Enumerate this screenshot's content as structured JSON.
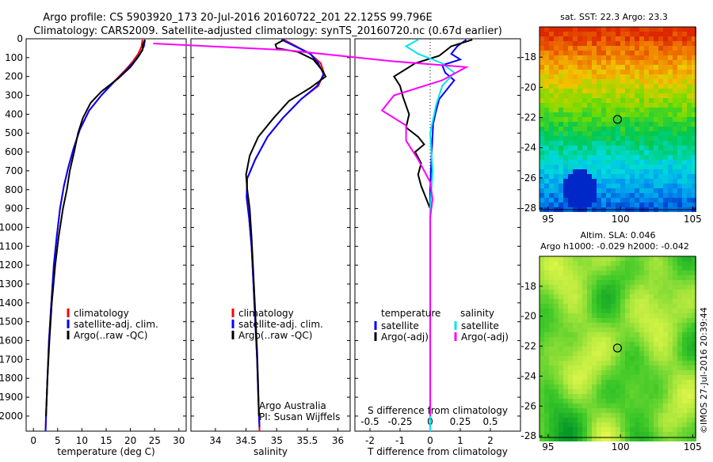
{
  "header": {
    "line1": "Argo profile: CS 5903920_173 20-Jul-2016 20160722_201 22.125S 99.796E",
    "line2": "Climatology: CARS2009. Satellite-adjusted climatology: synTS_20160720.nc (0.67d earlier)"
  },
  "colors": {
    "climatology": "#ff0000",
    "satellite": "#0000ff",
    "argo": "#000000",
    "salinity_satellite": "#00e5ee",
    "salinity_argo": "#ff00ff"
  },
  "depth_ticks": [
    "0",
    "100",
    "200",
    "300",
    "400",
    "500",
    "600",
    "700",
    "800",
    "900",
    "1000",
    "1100",
    "1200",
    "1300",
    "1400",
    "1500",
    "1600",
    "1700",
    "1800",
    "1900",
    "2000"
  ],
  "chart_data": [
    {
      "id": "temperature",
      "type": "line",
      "xlabel": "temperature (deg C)",
      "xlim": [
        -1.5,
        31.5
      ],
      "ylim": [
        0,
        2080
      ],
      "y_reversed": true,
      "xticks": [
        "0",
        "5",
        "10",
        "15",
        "20",
        "25",
        "30"
      ],
      "legend": [
        "climatology",
        "satellite-adj. clim.",
        "Argo(..raw -QC)"
      ],
      "series": [
        {
          "name": "climatology",
          "values": [
            [
              22.5,
              5
            ],
            [
              22.3,
              40
            ],
            [
              21.6,
              80
            ],
            [
              20.5,
              120
            ],
            [
              18.8,
              170
            ],
            [
              16.5,
              230
            ],
            [
              14.0,
              300
            ],
            [
              11.5,
              380
            ],
            [
              9.6,
              480
            ],
            [
              8.3,
              580
            ],
            [
              7.2,
              680
            ],
            [
              6.3,
              780
            ],
            [
              5.5,
              900
            ],
            [
              4.8,
              1050
            ],
            [
              4.2,
              1200
            ],
            [
              3.7,
              1400
            ],
            [
              3.2,
              1600
            ],
            [
              2.9,
              1800
            ],
            [
              2.6,
              2000
            ],
            [
              2.5,
              2080
            ]
          ]
        },
        {
          "name": "satellite-adj. clim.",
          "values": [
            [
              23.0,
              5
            ],
            [
              22.8,
              40
            ],
            [
              22.0,
              80
            ],
            [
              20.8,
              120
            ],
            [
              19.0,
              170
            ],
            [
              16.6,
              230
            ],
            [
              14.0,
              300
            ],
            [
              11.5,
              380
            ],
            [
              9.6,
              480
            ],
            [
              8.3,
              580
            ],
            [
              7.2,
              680
            ],
            [
              6.3,
              780
            ],
            [
              5.5,
              900
            ],
            [
              4.8,
              1050
            ],
            [
              4.2,
              1200
            ],
            [
              3.7,
              1400
            ],
            [
              3.2,
              1600
            ],
            [
              2.9,
              1800
            ],
            [
              2.6,
              2000
            ],
            [
              2.5,
              2080
            ]
          ]
        },
        {
          "name": "Argo(..raw -QC)",
          "values": [
            [
              23.0,
              5
            ],
            [
              22.6,
              30
            ],
            [
              22.5,
              60
            ],
            [
              21.5,
              100
            ],
            [
              20.0,
              150
            ],
            [
              17.5,
              210
            ],
            [
              14.0,
              280
            ],
            [
              11.8,
              340
            ],
            [
              10.2,
              420
            ],
            [
              9.2,
              500
            ],
            [
              8.4,
              600
            ],
            [
              7.5,
              700
            ],
            [
              6.9,
              800
            ],
            [
              6.1,
              900
            ],
            [
              5.2,
              1050
            ],
            [
              4.5,
              1200
            ],
            [
              3.8,
              1400
            ],
            [
              3.3,
              1600
            ],
            [
              2.9,
              1800
            ],
            [
              2.6,
              2000
            ]
          ]
        }
      ]
    },
    {
      "id": "salinity",
      "type": "line",
      "xlabel": "salinity",
      "xlim": [
        33.6,
        36.2
      ],
      "ylim": [
        0,
        2080
      ],
      "y_reversed": true,
      "xticks": [
        "34",
        "34.5",
        "35",
        "35.5",
        "36"
      ],
      "legend": [
        "climatology",
        "satellite-adj. clim.",
        "Argo(..raw -QC)"
      ],
      "annotation": [
        "Argo Australia",
        "PI: Susan Wijffels"
      ],
      "series": [
        {
          "name": "climatology",
          "values": [
            [
              35.12,
              5
            ],
            [
              35.32,
              40
            ],
            [
              35.55,
              80
            ],
            [
              35.72,
              130
            ],
            [
              35.77,
              180
            ],
            [
              35.68,
              250
            ],
            [
              35.4,
              320
            ],
            [
              35.1,
              420
            ],
            [
              34.85,
              520
            ],
            [
              34.65,
              640
            ],
            [
              34.52,
              740
            ],
            [
              34.51,
              840
            ],
            [
              34.55,
              950
            ],
            [
              34.59,
              1100
            ],
            [
              34.62,
              1300
            ],
            [
              34.65,
              1500
            ],
            [
              34.68,
              1700
            ],
            [
              34.7,
              1900
            ],
            [
              34.72,
              2080
            ]
          ]
        },
        {
          "name": "satellite-adj. clim.",
          "values": [
            [
              35.08,
              5
            ],
            [
              35.3,
              40
            ],
            [
              35.55,
              80
            ],
            [
              35.68,
              130
            ],
            [
              35.77,
              190
            ],
            [
              35.66,
              250
            ],
            [
              35.4,
              320
            ],
            [
              35.1,
              420
            ],
            [
              34.85,
              520
            ],
            [
              34.65,
              640
            ],
            [
              34.52,
              740
            ],
            [
              34.51,
              840
            ],
            [
              34.55,
              950
            ],
            [
              34.59,
              1100
            ],
            [
              34.62,
              1300
            ],
            [
              34.65,
              1500
            ],
            [
              34.68,
              1700
            ],
            [
              34.7,
              1900
            ],
            [
              34.72,
              2060
            ]
          ]
        },
        {
          "name": "Argo(..raw -QC)",
          "values": [
            [
              35.12,
              5
            ],
            [
              34.98,
              30
            ],
            [
              35.0,
              50
            ],
            [
              35.35,
              70
            ],
            [
              35.6,
              110
            ],
            [
              35.75,
              170
            ],
            [
              35.8,
              200
            ],
            [
              35.55,
              260
            ],
            [
              35.2,
              330
            ],
            [
              34.95,
              420
            ],
            [
              34.7,
              520
            ],
            [
              34.56,
              620
            ],
            [
              34.5,
              720
            ],
            [
              34.52,
              800
            ],
            [
              34.56,
              900
            ],
            [
              34.59,
              1050
            ],
            [
              34.62,
              1250
            ],
            [
              34.65,
              1450
            ],
            [
              34.68,
              1650
            ],
            [
              34.7,
              1850
            ],
            [
              34.71,
              2000
            ]
          ]
        }
      ]
    },
    {
      "id": "difference",
      "type": "line",
      "xlabel": "T difference from climatology",
      "top_label": "S difference from climatology",
      "xlim": [
        -2.5,
        3.0
      ],
      "ylim": [
        0,
        2080
      ],
      "y_reversed": true,
      "xticks": [
        "-2",
        "-1",
        "0",
        "1",
        "2"
      ],
      "top_xticks": [
        "-0.5",
        "-0.25",
        "0",
        "0.25",
        "0.5"
      ],
      "legend_headers": [
        "temperature",
        "salinity"
      ],
      "legend": [
        "satellite",
        "Argo(-adj)",
        "satellite",
        "Argo(-adj)"
      ],
      "series": [
        {
          "name": "satellite",
          "values": [
            [
              1.2,
              5
            ],
            [
              0.9,
              40
            ],
            [
              0.7,
              80
            ],
            [
              1.0,
              110
            ],
            [
              0.4,
              140
            ],
            [
              0.5,
              180
            ],
            [
              0.8,
              220
            ],
            [
              0.6,
              260
            ],
            [
              0.3,
              320
            ],
            [
              0.2,
              380
            ],
            [
              0.1,
              450
            ],
            [
              0.05,
              600
            ],
            [
              0.0,
              800
            ],
            [
              0.0,
              1000
            ],
            [
              0.0,
              1500
            ],
            [
              0.0,
              2080
            ]
          ]
        },
        {
          "name": "Argo(-adj)",
          "values": [
            [
              1.4,
              5
            ],
            [
              0.7,
              40
            ],
            [
              0.3,
              90
            ],
            [
              -0.5,
              130
            ],
            [
              -1.2,
              200
            ],
            [
              -1.0,
              250
            ],
            [
              -0.9,
              310
            ],
            [
              -0.7,
              400
            ],
            [
              -0.8,
              470
            ],
            [
              -0.4,
              520
            ],
            [
              -0.2,
              560
            ],
            [
              -0.5,
              600
            ],
            [
              -0.3,
              660
            ],
            [
              -0.4,
              720
            ],
            [
              -0.3,
              780
            ],
            [
              -0.2,
              820
            ],
            [
              -0.1,
              860
            ],
            [
              0.0,
              900
            ],
            [
              0.0,
              1200
            ],
            [
              0.0,
              1500
            ],
            [
              0.0,
              2000
            ]
          ]
        },
        {
          "name": "satellite",
          "values": [
            [
              -0.1,
              5
            ],
            [
              -0.2,
              40
            ],
            [
              -0.1,
              80
            ],
            [
              0.1,
              130
            ],
            [
              0.2,
              180
            ],
            [
              0.1,
              250
            ],
            [
              0.05,
              350
            ],
            [
              0.0,
              500
            ],
            [
              0.02,
              700
            ],
            [
              0.0,
              900
            ],
            [
              0.0,
              1200
            ],
            [
              0.0,
              1600
            ],
            [
              0.0,
              2080
            ]
          ]
        },
        {
          "name": "Argo(-adj)",
          "values": [
            [
              -2.3,
              25
            ],
            [
              -1.2,
              60
            ],
            [
              -0.3,
              120
            ],
            [
              0.3,
              150
            ],
            [
              0.1,
              220
            ],
            [
              -0.3,
              300
            ],
            [
              -0.4,
              380
            ],
            [
              -0.2,
              460
            ],
            [
              -0.2,
              540
            ],
            [
              -0.1,
              640
            ],
            [
              0.0,
              760
            ],
            [
              0.02,
              850
            ],
            [
              0.0,
              950
            ],
            [
              0.0,
              1200
            ],
            [
              0.0,
              1600
            ],
            [
              0.0,
              2000
            ]
          ]
        }
      ]
    },
    {
      "id": "sst_map",
      "type": "heatmap",
      "title": "sat. SST: 22.3 Argo: 23.3",
      "xlim": [
        94.4,
        105.2
      ],
      "ylim": [
        -28.1,
        -16.0
      ],
      "xticks": [
        "95",
        "100",
        "105"
      ],
      "yticks": [
        "-18",
        "-20",
        "-22",
        "-24",
        "-26",
        "-28"
      ],
      "marker": [
        99.796,
        -22.125
      ]
    },
    {
      "id": "sla_map",
      "type": "heatmap",
      "title": "Altim. SLA: 0.046",
      "subtitle": "Argo h1000: -0.029 h2000: -0.042",
      "xlim": [
        94.4,
        105.2
      ],
      "ylim": [
        -28.1,
        -16.0
      ],
      "xticks": [
        "95",
        "100",
        "105"
      ],
      "yticks": [
        "-18",
        "-20",
        "-22",
        "-24",
        "-26",
        "-28"
      ],
      "marker": [
        99.796,
        -22.125
      ]
    }
  ],
  "credit": "©IMOS 27-Jul-2016 20:39:44"
}
